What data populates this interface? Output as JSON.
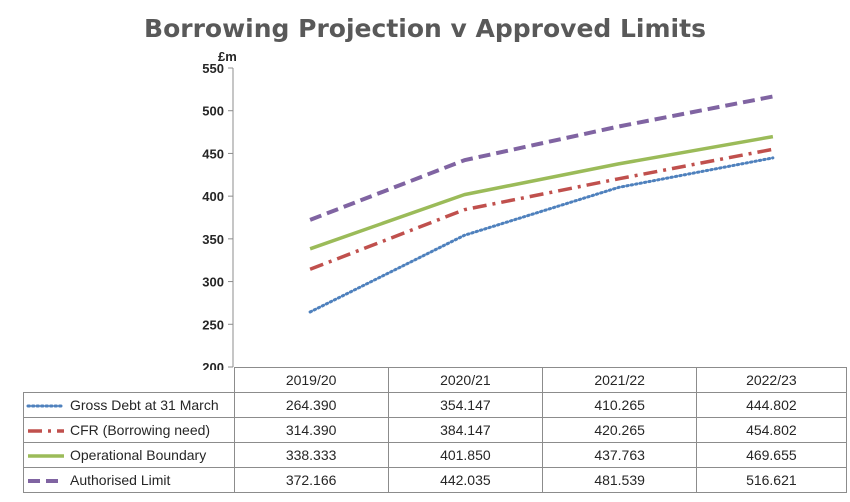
{
  "chart_data": {
    "type": "line",
    "title": "Borrowing Projection v Approved Limits",
    "ylabel": "£m",
    "ylim": [
      200,
      550
    ],
    "yticks": [
      200,
      250,
      300,
      350,
      400,
      450,
      500,
      550
    ],
    "categories": [
      "2019/20",
      "2020/21",
      "2021/22",
      "2022/23"
    ],
    "grid": false,
    "legend": "data-table",
    "series": [
      {
        "name": "Gross Debt at 31 March",
        "values": [
          "264.390",
          "354.147",
          "410.265",
          "444.802"
        ],
        "color": "#4f81bd",
        "style": "dotted"
      },
      {
        "name": "CFR (Borrowing need)",
        "values": [
          "314.390",
          "384.147",
          "420.265",
          "454.802"
        ],
        "color": "#c0504d",
        "style": "dashdot"
      },
      {
        "name": "Operational Boundary",
        "values": [
          "338.333",
          "401.850",
          "437.763",
          "469.655"
        ],
        "color": "#9bbb59",
        "style": "solid"
      },
      {
        "name": "Authorised Limit",
        "values": [
          "372.166",
          "442.035",
          "481.539",
          "516.621"
        ],
        "color": "#8064a2",
        "style": "dashed"
      }
    ]
  }
}
